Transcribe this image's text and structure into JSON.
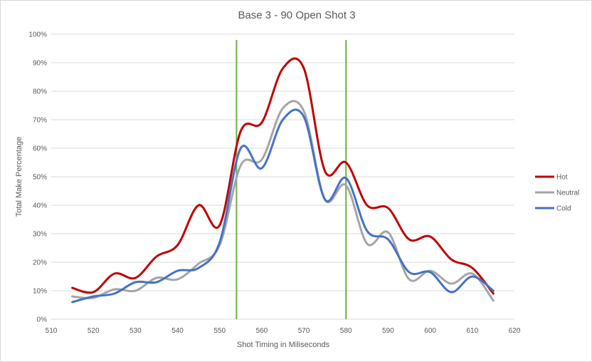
{
  "chart_data": {
    "type": "line",
    "title": "Base 3 - 90 Open Shot 3",
    "xlabel": "Shot Timing in Miliseconds",
    "ylabel": "Total Make Percentage",
    "xlim": [
      510,
      620
    ],
    "ylim": [
      0,
      100
    ],
    "x_ticks": [
      510,
      520,
      530,
      540,
      550,
      560,
      570,
      580,
      590,
      600,
      610,
      620
    ],
    "y_ticks": [
      0,
      10,
      20,
      30,
      40,
      50,
      60,
      70,
      80,
      90,
      100
    ],
    "y_tick_format": "percent",
    "grid": "horizontal",
    "legend_position": "right",
    "smooth": true,
    "vertical_markers": [
      {
        "x": 554,
        "color": "#70ad47"
      },
      {
        "x": 580,
        "color": "#70ad47"
      }
    ],
    "x": [
      515,
      520,
      525,
      530,
      535,
      540,
      545,
      550,
      555,
      560,
      565,
      570,
      575,
      580,
      585,
      590,
      595,
      600,
      605,
      610,
      615
    ],
    "series": [
      {
        "name": "Hot",
        "color": "#c00000",
        "values": [
          11,
          9.5,
          16,
          14.5,
          22,
          26,
          40,
          33,
          66,
          69,
          88,
          88,
          52,
          55,
          40,
          39,
          28,
          29,
          21,
          18,
          9
        ]
      },
      {
        "name": "Neutral",
        "color": "#a5a5a5",
        "values": [
          8,
          7.5,
          10.5,
          10,
          14.5,
          14,
          19.5,
          26,
          54,
          56,
          74,
          73,
          42,
          47,
          26.5,
          30.5,
          14,
          17,
          12.5,
          16,
          6.5
        ]
      },
      {
        "name": "Cold",
        "color": "#4472c4",
        "values": [
          6,
          8,
          9,
          13,
          13,
          17,
          18,
          27,
          60,
          53,
          70,
          71,
          42,
          49.5,
          31,
          28,
          16.5,
          16.5,
          9.5,
          15,
          10
        ]
      }
    ]
  }
}
